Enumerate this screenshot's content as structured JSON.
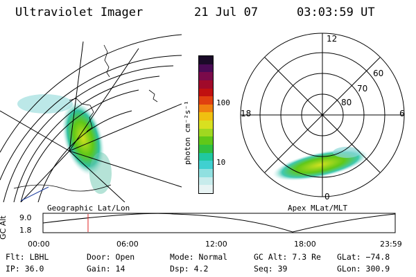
{
  "header": {
    "title": "Ultraviolet Imager",
    "date": "21 Jul 07",
    "time": "03:03:59 UT"
  },
  "colorbar": {
    "label": "photon cm⁻²s⁻¹",
    "ticks": [
      "100",
      "10"
    ],
    "colors": [
      "#1a0a28",
      "#4a0a55",
      "#7a0a4a",
      "#a00a2a",
      "#c01010",
      "#e04010",
      "#f08010",
      "#f0c010",
      "#d8e020",
      "#a0d820",
      "#60c818",
      "#30c040",
      "#20c8a0",
      "#40d0d0",
      "#90e0e0",
      "#c8ecec",
      "#e8f4f4"
    ]
  },
  "geo_panel": {
    "caption": "Geographic Lat/Lon"
  },
  "polar_panel": {
    "caption": "Apex MLat/MLT",
    "mlt_labels": {
      "top": "12",
      "left": "18",
      "right": "6",
      "bottom": "0"
    },
    "lat_labels": [
      "60",
      "70",
      "80"
    ]
  },
  "altitude_plot": {
    "ylabel": "GC Alt",
    "yticks": [
      "9.0",
      "1.8"
    ],
    "xticks": [
      "00:00",
      "06:00",
      "12:00",
      "18:00",
      "23:59"
    ],
    "marker_time_hours": 3.07,
    "marker_color": "#e02020"
  },
  "info": {
    "flt": "Flt: LBHL",
    "ip": "IP: 36.0",
    "door": "Door: Open",
    "gain": "Gain: 14",
    "mode": "Mode: Normal",
    "dsp": "Dsp:    4.2",
    "gcalt": "GC Alt: 7.3 Re",
    "seq": "Seq: 39",
    "glat": "GLat: −74.8",
    "glon": "GLon: 300.9"
  }
}
